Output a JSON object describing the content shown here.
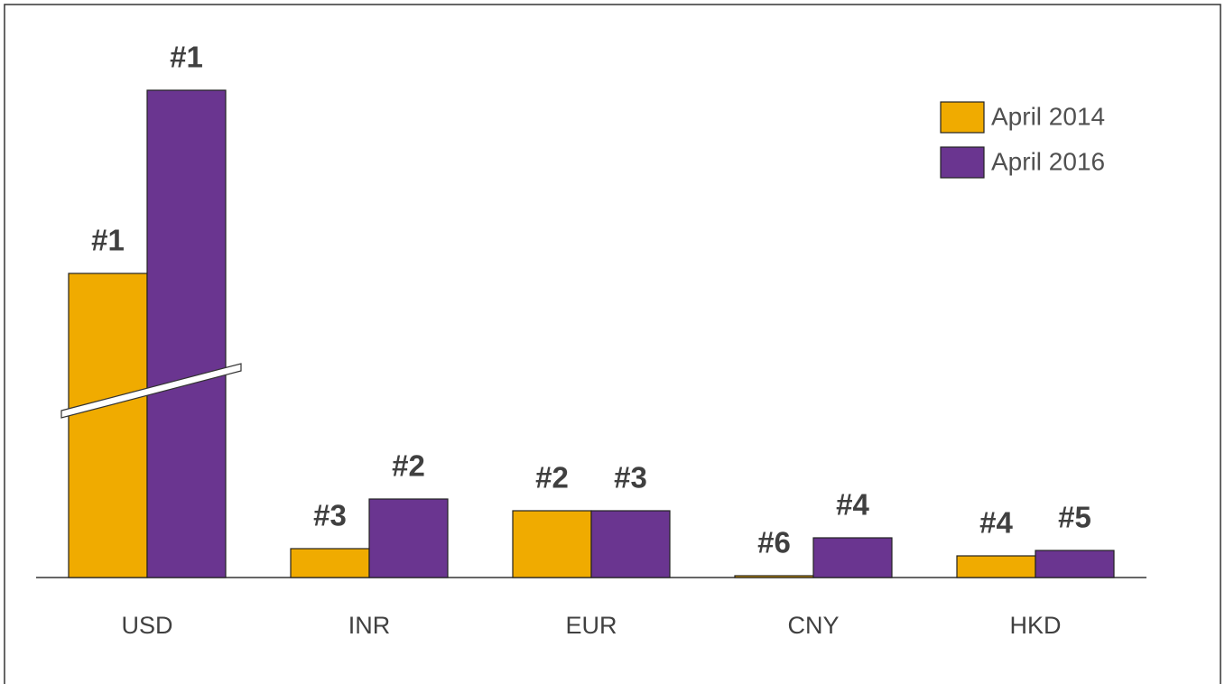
{
  "chart_data": {
    "type": "bar",
    "categories": [
      "USD",
      "INR",
      "EUR",
      "CNY",
      "HKD"
    ],
    "series": [
      {
        "name": "April 2014",
        "color": "#f0ab00",
        "values": [
          337,
          32,
          74,
          2,
          24
        ],
        "rank_labels": [
          "#1",
          "#3",
          "#2",
          "#6",
          "#4"
        ]
      },
      {
        "name": "April 2016",
        "color": "#6a3590",
        "values": [
          540,
          87,
          74,
          44,
          30
        ],
        "rank_labels": [
          "#1",
          "#2",
          "#3",
          "#4",
          "#5"
        ]
      }
    ],
    "ylim": [
      0,
      540
    ],
    "axis_break": true,
    "legend": "top-right"
  }
}
